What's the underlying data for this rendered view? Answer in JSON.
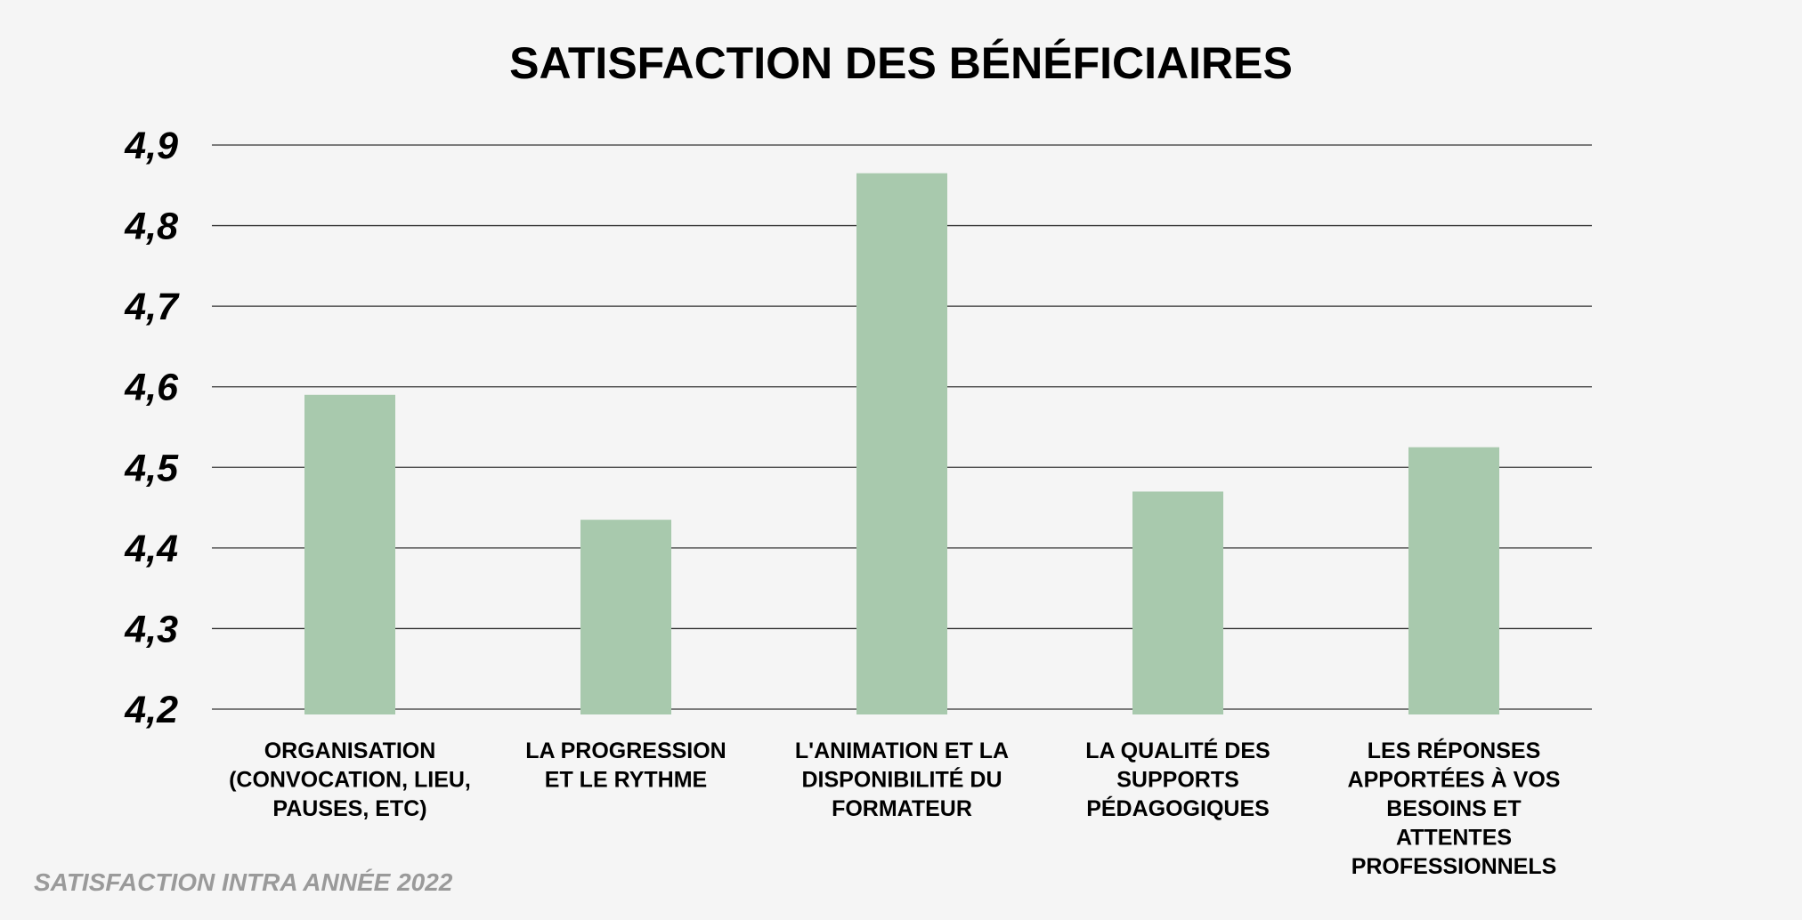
{
  "chart_data": {
    "type": "bar",
    "title": "SATISFACTION DES BÉNÉFICIAIRES",
    "categories": [
      [
        "ORGANISATION",
        "(CONVOCATION, LIEU,",
        "PAUSES, ETC)"
      ],
      [
        "LA PROGRESSION",
        "ET LE RYTHME"
      ],
      [
        "L'ANIMATION ET LA",
        "DISPONIBILITÉ DU",
        "FORMATEUR"
      ],
      [
        "LA QUALITÉ DES",
        "SUPPORTS",
        "PÉDAGOGIQUES"
      ],
      [
        "LES RÉPONSES",
        "APPORTÉES À VOS",
        "BESOINS ET",
        "ATTENTES",
        "PROFESSIONNELS"
      ]
    ],
    "values": [
      4.59,
      4.435,
      4.865,
      4.47,
      4.525
    ],
    "ylim": [
      4.2,
      4.9
    ],
    "yticks": [
      "4,2",
      "4,3",
      "4,4",
      "4,5",
      "4,6",
      "4,7",
      "4,8",
      "4,9"
    ],
    "grid": true,
    "bar_color": "#a8c9ad",
    "grid_color": "#333333"
  },
  "footer": {
    "caption": "SATISFACTION INTRA ANNÉE 2022"
  }
}
